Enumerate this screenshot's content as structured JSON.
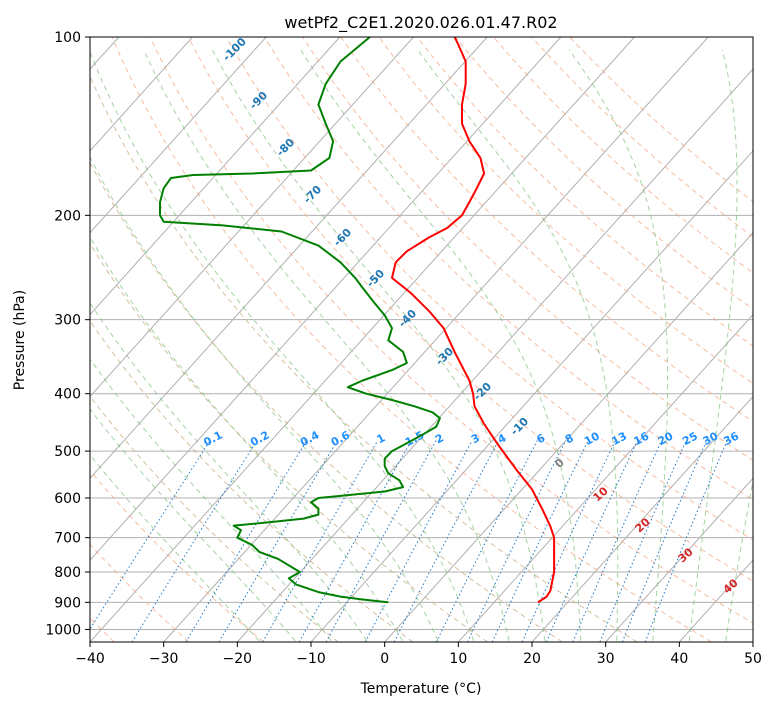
{
  "chart_data": {
    "type": "line",
    "title": "wetPf2_C2E1.2020.026.01.47.R02",
    "xlabel": "Temperature (°C)",
    "ylabel": "Pressure (hPa)",
    "xlim": [
      -40,
      50
    ],
    "ylim": [
      1050,
      100
    ],
    "y_scale": "log",
    "grid": true,
    "x_ticks": [
      -40,
      -30,
      -20,
      -10,
      0,
      10,
      20,
      30,
      40,
      50
    ],
    "y_ticks": [
      100,
      200,
      300,
      400,
      500,
      600,
      700,
      800,
      900,
      1000
    ],
    "series": [
      {
        "role": "temperature",
        "color": "#ff0000",
        "points": [
          [
            20.8,
            900
          ],
          [
            22.0,
            880
          ],
          [
            22.5,
            860
          ],
          [
            23.0,
            800
          ],
          [
            23.0,
            750
          ],
          [
            23.0,
            700
          ],
          [
            22.5,
            670
          ],
          [
            21.5,
            630
          ],
          [
            20.0,
            580
          ],
          [
            18.0,
            540
          ],
          [
            15.5,
            490
          ],
          [
            13.5,
            450
          ],
          [
            12.2,
            420
          ],
          [
            12.0,
            400
          ],
          [
            11.5,
            380
          ],
          [
            9.5,
            340
          ],
          [
            8.0,
            310
          ],
          [
            6.0,
            290
          ],
          [
            3.5,
            270
          ],
          [
            1.0,
            255
          ],
          [
            1.5,
            240
          ],
          [
            3.0,
            230
          ],
          [
            6.0,
            218
          ],
          [
            8.5,
            210
          ],
          [
            10.5,
            200
          ],
          [
            11.5,
            190
          ],
          [
            12.5,
            180
          ],
          [
            13.5,
            170
          ],
          [
            13.0,
            160
          ],
          [
            11.5,
            150
          ],
          [
            10.5,
            140
          ],
          [
            10.5,
            130
          ],
          [
            11.0,
            120
          ],
          [
            11.0,
            110
          ],
          [
            10.0,
            103
          ],
          [
            9.5,
            100
          ]
        ]
      },
      {
        "role": "dewpoint",
        "color": "#008000",
        "points": [
          [
            0.5,
            900
          ],
          [
            -3.0,
            890
          ],
          [
            -6.0,
            880
          ],
          [
            -9.0,
            865
          ],
          [
            -12.0,
            840
          ],
          [
            -13.0,
            820
          ],
          [
            -11.5,
            800
          ],
          [
            -14.5,
            760
          ],
          [
            -17.0,
            740
          ],
          [
            -18.0,
            720
          ],
          [
            -20.0,
            700
          ],
          [
            -19.5,
            680
          ],
          [
            -20.5,
            668
          ],
          [
            -16.0,
            660
          ],
          [
            -11.0,
            650
          ],
          [
            -9.0,
            640
          ],
          [
            -9.0,
            625
          ],
          [
            -10.0,
            610
          ],
          [
            -9.0,
            600
          ],
          [
            -6.0,
            595
          ],
          [
            0.0,
            585
          ],
          [
            2.5,
            575
          ],
          [
            2.0,
            560
          ],
          [
            0.5,
            545
          ],
          [
            0.0,
            530
          ],
          [
            0.0,
            515
          ],
          [
            1.0,
            500
          ],
          [
            3.0,
            485
          ],
          [
            5.0,
            470
          ],
          [
            7.0,
            455
          ],
          [
            7.5,
            440
          ],
          [
            6.5,
            430
          ],
          [
            4.0,
            420
          ],
          [
            1.0,
            410
          ],
          [
            -2.5,
            400
          ],
          [
            -5.0,
            390
          ],
          [
            -3.0,
            380
          ],
          [
            1.0,
            365
          ],
          [
            3.0,
            355
          ],
          [
            2.5,
            340
          ],
          [
            0.5,
            325
          ],
          [
            1.0,
            310
          ],
          [
            0.0,
            295
          ],
          [
            -1.5,
            280
          ],
          [
            -3.0,
            265
          ],
          [
            -4.0,
            255
          ],
          [
            -6.0,
            240
          ],
          [
            -9.0,
            225
          ],
          [
            -14.0,
            213
          ],
          [
            -22.0,
            208
          ],
          [
            -30.0,
            205
          ],
          [
            -30.5,
            200
          ],
          [
            -30.5,
            190
          ],
          [
            -30.0,
            180
          ],
          [
            -29.0,
            173
          ],
          [
            -26.0,
            171
          ],
          [
            -18.0,
            170
          ],
          [
            -10.0,
            168
          ],
          [
            -7.5,
            160
          ],
          [
            -7.0,
            150
          ],
          [
            -8.0,
            140
          ],
          [
            -9.0,
            130
          ],
          [
            -8.0,
            120
          ],
          [
            -6.0,
            110
          ],
          [
            -2.0,
            100
          ]
        ]
      }
    ],
    "mixing_ratio_labels": [
      "0.1",
      "0.2",
      "0.4",
      "0.6",
      "1",
      "1.5",
      "2",
      "3",
      "4",
      "6",
      "8",
      "10",
      "13",
      "16",
      "20",
      "25",
      "30",
      "36"
    ],
    "dry_adiabat_labels": [
      "-100",
      "-90",
      "-80",
      "-70",
      "-60",
      "-50",
      "-40",
      "-30",
      "-20",
      "-10"
    ],
    "moist_adiabat_labels": [
      "0",
      "10",
      "20",
      "30",
      "40"
    ]
  }
}
